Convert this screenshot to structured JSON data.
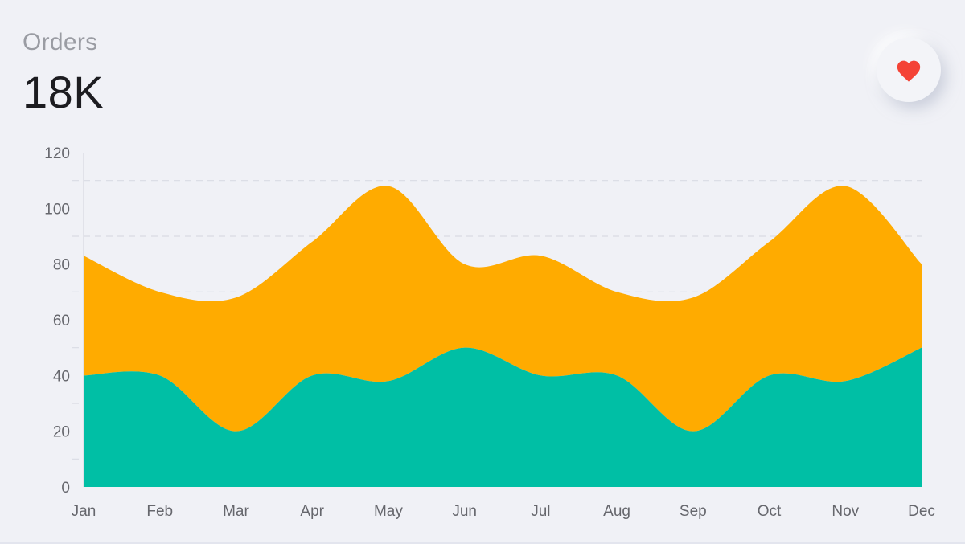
{
  "header": {
    "title": "Orders",
    "value": "18K"
  },
  "favorite_button": {
    "icon": "heart-icon",
    "color": "#f44336"
  },
  "colors": {
    "background": "#f0f1f6",
    "series_1": "#00bfa5",
    "series_2": "#ffab00",
    "grid": "#d9dbe3",
    "axis": "#d7d9e0"
  },
  "chart_data": {
    "type": "area",
    "stacked": true,
    "categories": [
      "Jan",
      "Feb",
      "Mar",
      "Apr",
      "May",
      "Jun",
      "Jul",
      "Aug",
      "Sep",
      "Oct",
      "Nov",
      "Dec"
    ],
    "series": [
      {
        "values": [
          40,
          40,
          20,
          40,
          38,
          50,
          40,
          40,
          20,
          40,
          38,
          50
        ]
      },
      {
        "values": [
          43,
          30,
          48,
          48,
          70,
          30,
          43,
          30,
          48,
          48,
          70,
          30
        ]
      }
    ],
    "ylim": [
      0,
      120
    ],
    "yticks": [
      0,
      20,
      40,
      60,
      80,
      100,
      120
    ],
    "grid": true,
    "legend": "none"
  }
}
